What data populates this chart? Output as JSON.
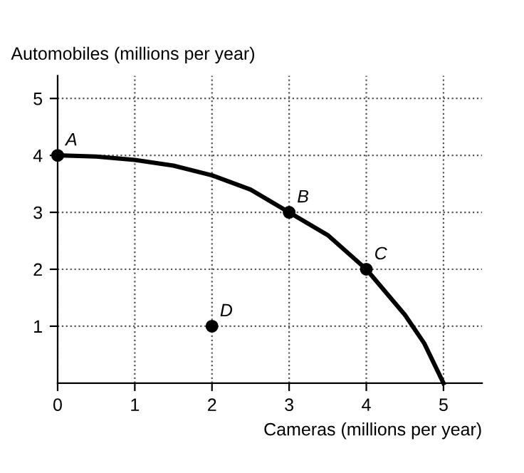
{
  "chart_data": {
    "type": "line",
    "xlabel": "Cameras (millions per year)",
    "ylabel": "Automobiles (millions per year)",
    "xlim": [
      0,
      5.5
    ],
    "ylim": [
      0,
      5.4
    ],
    "xticks": [
      0,
      1,
      2,
      3,
      4,
      5
    ],
    "yticks": [
      1,
      2,
      3,
      4,
      5
    ],
    "grid": true,
    "series": [
      {
        "color": "#000000",
        "marker": "none",
        "x": [
          0,
          0.5,
          1,
          1.5,
          2,
          2.5,
          3,
          3.5,
          4,
          4.5,
          4.75,
          5
        ],
        "values": [
          4,
          3.98,
          3.92,
          3.82,
          3.65,
          3.4,
          3.0,
          2.6,
          2.0,
          1.2,
          0.7,
          0
        ]
      },
      {
        "type": "scatter",
        "color": "#000000",
        "marker": "circle",
        "x": [
          0,
          3,
          4,
          2
        ],
        "values": [
          4,
          3,
          2,
          1
        ]
      }
    ],
    "annotations": [
      {
        "text": "A",
        "x": 0,
        "y": 4
      },
      {
        "text": "B",
        "x": 3,
        "y": 3
      },
      {
        "text": "C",
        "x": 4,
        "y": 2
      },
      {
        "text": "D",
        "x": 2,
        "y": 1
      }
    ]
  }
}
